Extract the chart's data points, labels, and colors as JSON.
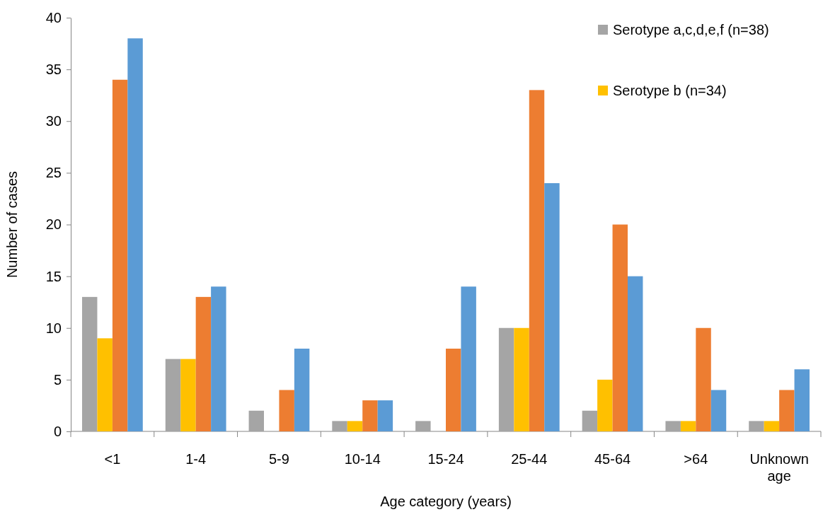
{
  "chart_data": {
    "type": "bar",
    "xlabel": "Age category (years)",
    "ylabel": "Number of cases",
    "categories": [
      "<1",
      "1-4",
      "5-9",
      "10-14",
      "15-24",
      "25-44",
      "45-64",
      ">64",
      "Unknown age"
    ],
    "series": [
      {
        "name": "Serotype a,c,d,e,f (n=38)",
        "color": "#a5a5a5",
        "values": [
          13,
          7,
          2,
          1,
          1,
          10,
          2,
          1,
          1
        ]
      },
      {
        "name": "Serotype b (n=34)",
        "color": "#ffc000",
        "values": [
          9,
          7,
          0,
          1,
          0,
          10,
          5,
          1,
          1
        ]
      },
      {
        "color": "#ed7d31",
        "values": [
          34,
          13,
          4,
          3,
          8,
          33,
          20,
          10,
          4
        ]
      },
      {
        "color": "#5b9bd5",
        "values": [
          38,
          14,
          8,
          3,
          14,
          24,
          15,
          4,
          6
        ]
      }
    ],
    "ylim": [
      0,
      40
    ],
    "yticks": [
      0,
      5,
      10,
      15,
      20,
      25,
      30,
      35,
      40
    ],
    "grid": false,
    "legend": "top right"
  }
}
